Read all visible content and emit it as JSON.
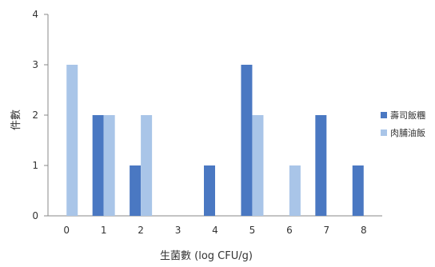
{
  "chart_data": {
    "type": "bar",
    "x": [
      "0",
      "1",
      "2",
      "3",
      "4",
      "5",
      "6",
      "7",
      "8"
    ],
    "xlabel": "生菌數  (log CFU/g)",
    "ylabel": "件數",
    "ylim": [
      0,
      4
    ],
    "yticks": [
      "0",
      "1",
      "2",
      "3",
      "4"
    ],
    "grid": false,
    "legend_position": "right",
    "series": [
      {
        "name": "壽司飯糰",
        "color": "#4a78c2",
        "values": [
          0,
          2,
          1,
          0,
          1,
          3,
          0,
          2,
          1
        ]
      },
      {
        "name": "肉脯油飯",
        "color": "#a9c5e8",
        "values": [
          3,
          2,
          2,
          0,
          0,
          2,
          1,
          0,
          0
        ]
      }
    ]
  }
}
